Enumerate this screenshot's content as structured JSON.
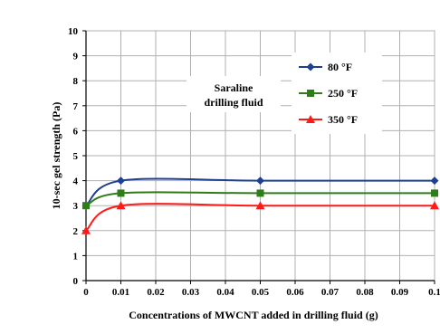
{
  "chart_data": {
    "type": "line",
    "xlabel": "Concentrations of MWCNT added in drilling fluid (g)",
    "ylabel": "10-sec gel strength (Pa)",
    "xlim": [
      0,
      0.1
    ],
    "ylim": [
      0,
      10
    ],
    "x_ticks": [
      "0",
      "0.01",
      "0.02",
      "0.03",
      "0.04",
      "0.05",
      "0.06",
      "0.07",
      "0.08",
      "0.09",
      "0.1"
    ],
    "y_ticks": [
      "0",
      "1",
      "2",
      "3",
      "4",
      "5",
      "6",
      "7",
      "8",
      "9",
      "10"
    ],
    "grid": true,
    "legend_position": "top-right",
    "annotation": [
      "Saraline",
      "drilling fluid"
    ],
    "series": [
      {
        "name": "80 °F",
        "x": [
          0,
          0.01,
          0.05,
          0.1
        ],
        "y": [
          3,
          4,
          4,
          4
        ],
        "color": "#1f3f8f",
        "marker": "diamond"
      },
      {
        "name": "250 °F",
        "x": [
          0,
          0.01,
          0.05,
          0.1
        ],
        "y": [
          3,
          3.5,
          3.5,
          3.5
        ],
        "color": "#2e7d1a",
        "marker": "square"
      },
      {
        "name": "350 °F",
        "x": [
          0,
          0.01,
          0.05,
          0.1
        ],
        "y": [
          2,
          3,
          3,
          3
        ],
        "color": "#ff1a1a",
        "marker": "triangle"
      }
    ]
  }
}
